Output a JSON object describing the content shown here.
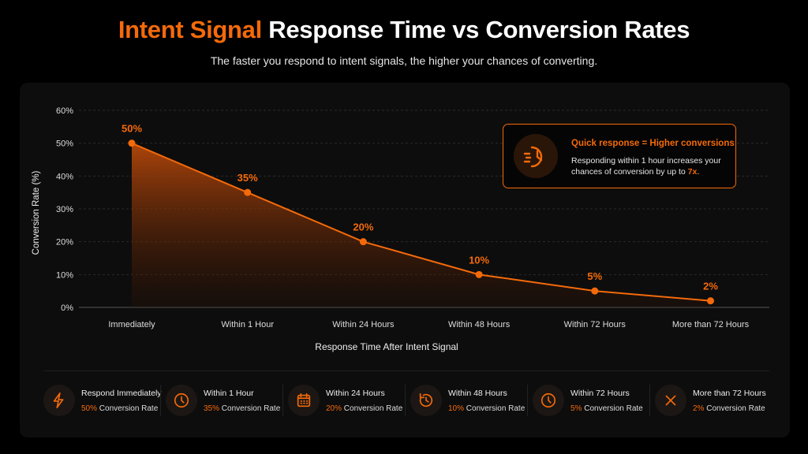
{
  "header": {
    "title_accent": "Intent Signal",
    "title_rest": " Response Time vs Conversion Rates",
    "subtitle": "The faster you respond to intent signals, the higher your chances of converting."
  },
  "chart_data": {
    "type": "area",
    "categories": [
      "Immediately",
      "Within 1 Hour",
      "Within 24 Hours",
      "Within 48 Hours",
      "Within 72 Hours",
      "More than 72 Hours"
    ],
    "values": [
      50,
      35,
      20,
      10,
      5,
      2
    ],
    "data_labels": [
      "50%",
      "35%",
      "20%",
      "10%",
      "5%",
      "2%"
    ],
    "xlabel": "Response Time After Intent Signal",
    "ylabel": "Conversion Rate (%)",
    "ylim": [
      0,
      60
    ],
    "yticks": [
      "0%",
      "10%",
      "20%",
      "30%",
      "40%",
      "50%",
      "60%"
    ],
    "grid": true,
    "color": "#f46a0a"
  },
  "callout": {
    "icon": "fast-clock-icon",
    "heading": "Quick response = Higher conversions",
    "body": "Responding within 1 hour increases your chances of conversion by up to ",
    "highlight": "7x",
    "end": "."
  },
  "legend": [
    {
      "icon": "lightning-icon",
      "title": "Respond Immediately",
      "value": "50%",
      "suffix": " Conversion Rate"
    },
    {
      "icon": "clock-icon",
      "title": "Within 1 Hour",
      "value": "35%",
      "suffix": " Conversion Rate"
    },
    {
      "icon": "calendar-icon",
      "title": "Within 24 Hours",
      "value": "20%",
      "suffix": " Conversion Rate"
    },
    {
      "icon": "clock-refresh-icon",
      "title": "Within 48 Hours",
      "value": "10%",
      "suffix": " Conversion Rate"
    },
    {
      "icon": "clock-icon",
      "title": "Within 72 Hours",
      "value": "5%",
      "suffix": " Conversion Rate"
    },
    {
      "icon": "x-icon",
      "title": "More than 72 Hours",
      "value": "2%",
      "suffix": " Conversion Rate"
    }
  ]
}
